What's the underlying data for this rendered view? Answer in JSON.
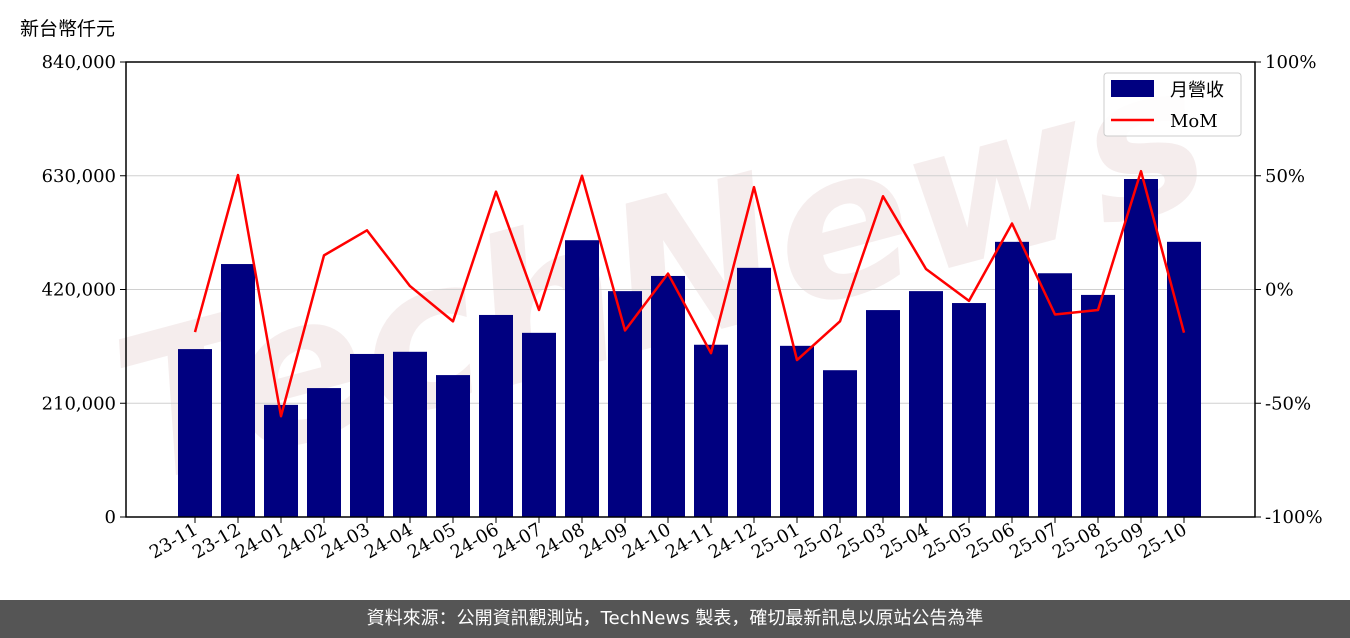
{
  "unit_label": "新台幣仟元",
  "footer": "資料來源：公開資訊觀測站，TechNews 製表，確切最新訊息以原站公告為準",
  "watermark": "TechNews",
  "chart_data": {
    "type": "bar+line",
    "categories": [
      "23-11",
      "23-12",
      "24-01",
      "24-02",
      "24-03",
      "24-04",
      "24-05",
      "24-06",
      "24-07",
      "24-08",
      "24-09",
      "24-10",
      "24-11",
      "24-12",
      "25-01",
      "25-02",
      "25-03",
      "25-04",
      "25-05",
      "25-06",
      "25-07",
      "25-08",
      "25-09",
      "25-10"
    ],
    "series": [
      {
        "name": "月營收",
        "type": "bar",
        "axis": "left",
        "color": "#000080",
        "values": [
          310000,
          467000,
          207000,
          238000,
          301000,
          305000,
          262000,
          373000,
          340000,
          511000,
          417000,
          445000,
          318000,
          460000,
          316000,
          271000,
          382000,
          417000,
          395000,
          508000,
          450000,
          410000,
          624000,
          508000
        ]
      },
      {
        "name": "MoM",
        "type": "line",
        "axis": "right",
        "color": "#ff0000",
        "values": [
          -18.7,
          50.3,
          -55.7,
          15,
          26,
          1.5,
          -14,
          43,
          -9,
          50,
          -18,
          7,
          -28,
          45,
          -31,
          -14,
          41,
          9,
          -5,
          29,
          -11,
          -9,
          52,
          -19
        ]
      }
    ],
    "left_axis": {
      "ylim": [
        0,
        840000
      ],
      "ticks": [
        "0",
        "210,000",
        "420,000",
        "630,000",
        "840,000"
      ]
    },
    "right_axis": {
      "ylim": [
        -100,
        100
      ],
      "ticks": [
        "-100%",
        "-50%",
        "0%",
        "50%",
        "100%"
      ]
    },
    "grid": true,
    "legend": "top-right"
  }
}
